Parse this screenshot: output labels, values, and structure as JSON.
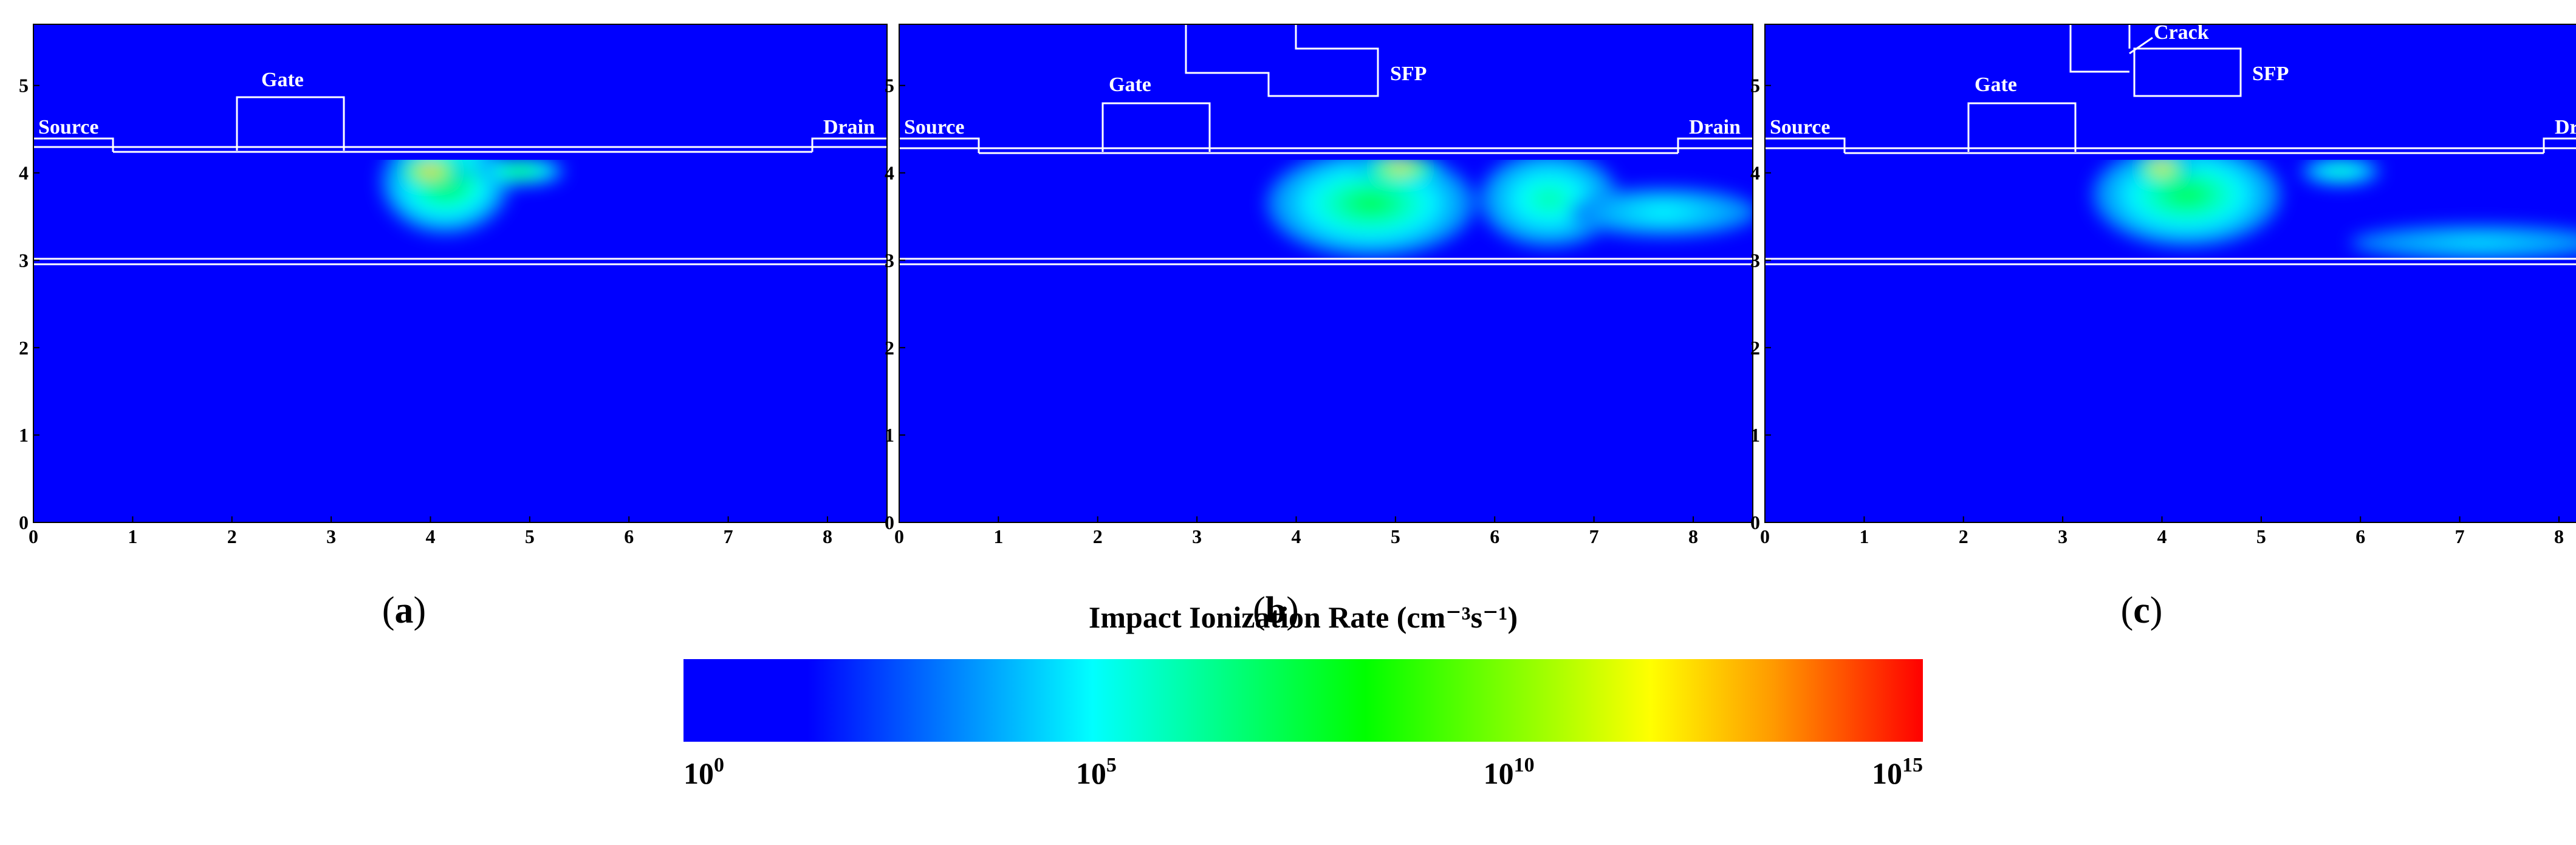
{
  "chart_data": [
    {
      "type": "heatmap",
      "id": "a",
      "panel_label": {
        "open": "(",
        "letter": "a",
        "close": ")"
      },
      "xlim": [
        0,
        8.6
      ],
      "ylim": [
        0,
        5.7
      ],
      "xticks": [
        "0",
        "1",
        "2",
        "3",
        "4",
        "5",
        "6",
        "7",
        "8"
      ],
      "yticks": [
        "0",
        "1",
        "2",
        "3",
        "4",
        "5"
      ],
      "structure_labels": [
        "Source",
        "Gate",
        "Drain"
      ],
      "hotspots": [
        {
          "cx": 4.15,
          "cy": 3.9,
          "rx": 0.65,
          "ry": 0.6,
          "level": 0.5
        },
        {
          "cx": 4.0,
          "cy": 4.02,
          "rx": 0.38,
          "ry": 0.16,
          "level": 0.95
        },
        {
          "cx": 4.9,
          "cy": 4.02,
          "rx": 0.45,
          "ry": 0.16,
          "level": 0.52
        }
      ]
    },
    {
      "type": "heatmap",
      "id": "b",
      "panel_label": {
        "open": "(",
        "letter": "b",
        "close": ")"
      },
      "xlim": [
        0,
        8.6
      ],
      "ylim": [
        0,
        5.7
      ],
      "xticks": [
        "0",
        "1",
        "2",
        "3",
        "4",
        "5",
        "6",
        "7",
        "8"
      ],
      "yticks": [
        "0",
        "1",
        "2",
        "3",
        "4",
        "5"
      ],
      "structure_labels": [
        "Source",
        "Gate",
        "SFP",
        "Drain"
      ],
      "hotspots": [
        {
          "cx": 4.75,
          "cy": 3.65,
          "rx": 1.05,
          "ry": 0.62,
          "level": 0.47
        },
        {
          "cx": 5.05,
          "cy": 4.05,
          "rx": 0.45,
          "ry": 0.14,
          "level": 0.88
        },
        {
          "cx": 6.55,
          "cy": 3.7,
          "rx": 0.7,
          "ry": 0.55,
          "level": 0.4
        },
        {
          "cx": 7.7,
          "cy": 3.55,
          "rx": 0.95,
          "ry": 0.28,
          "level": 0.33
        }
      ]
    },
    {
      "type": "heatmap",
      "id": "c",
      "panel_label": {
        "open": "(",
        "letter": "c",
        "close": ")"
      },
      "xlim": [
        0,
        8.6
      ],
      "ylim": [
        0,
        5.7
      ],
      "xticks": [
        "0",
        "1",
        "2",
        "3",
        "4",
        "5",
        "6",
        "7",
        "8"
      ],
      "yticks": [
        "0",
        "1",
        "2",
        "3",
        "4",
        "5"
      ],
      "structure_labels": [
        "Source",
        "Gate",
        "Crack",
        "SFP",
        "Drain"
      ],
      "hotspots": [
        {
          "cx": 4.25,
          "cy": 3.75,
          "rx": 0.95,
          "ry": 0.6,
          "level": 0.47
        },
        {
          "cx": 4.0,
          "cy": 4.05,
          "rx": 0.32,
          "ry": 0.14,
          "level": 0.92
        },
        {
          "cx": 5.8,
          "cy": 4.02,
          "rx": 0.4,
          "ry": 0.16,
          "level": 0.4
        },
        {
          "cx": 7.2,
          "cy": 3.2,
          "rx": 1.3,
          "ry": 0.2,
          "level": 0.3
        }
      ]
    }
  ],
  "colorbar": {
    "title": "Impact Ionization Rate (cm⁻³s⁻¹)",
    "ticks": [
      {
        "base": "10",
        "exp": "0",
        "frac": 0.0
      },
      {
        "base": "10",
        "exp": "5",
        "frac": 0.333
      },
      {
        "base": "10",
        "exp": "10",
        "frac": 0.666
      },
      {
        "base": "10",
        "exp": "15",
        "frac": 1.0
      }
    ],
    "stops": [
      {
        "offset": 0.0,
        "color": "#0000ff"
      },
      {
        "offset": 0.1,
        "color": "#0000ff"
      },
      {
        "offset": 0.33,
        "color": "#00ffff"
      },
      {
        "offset": 0.55,
        "color": "#00ff00"
      },
      {
        "offset": 0.78,
        "color": "#ffff00"
      },
      {
        "offset": 0.88,
        "color": "#ff9900"
      },
      {
        "offset": 1.0,
        "color": "#ff0000"
      }
    ]
  },
  "colors": {
    "background": "#0000ff",
    "outline": "#ffffff"
  }
}
